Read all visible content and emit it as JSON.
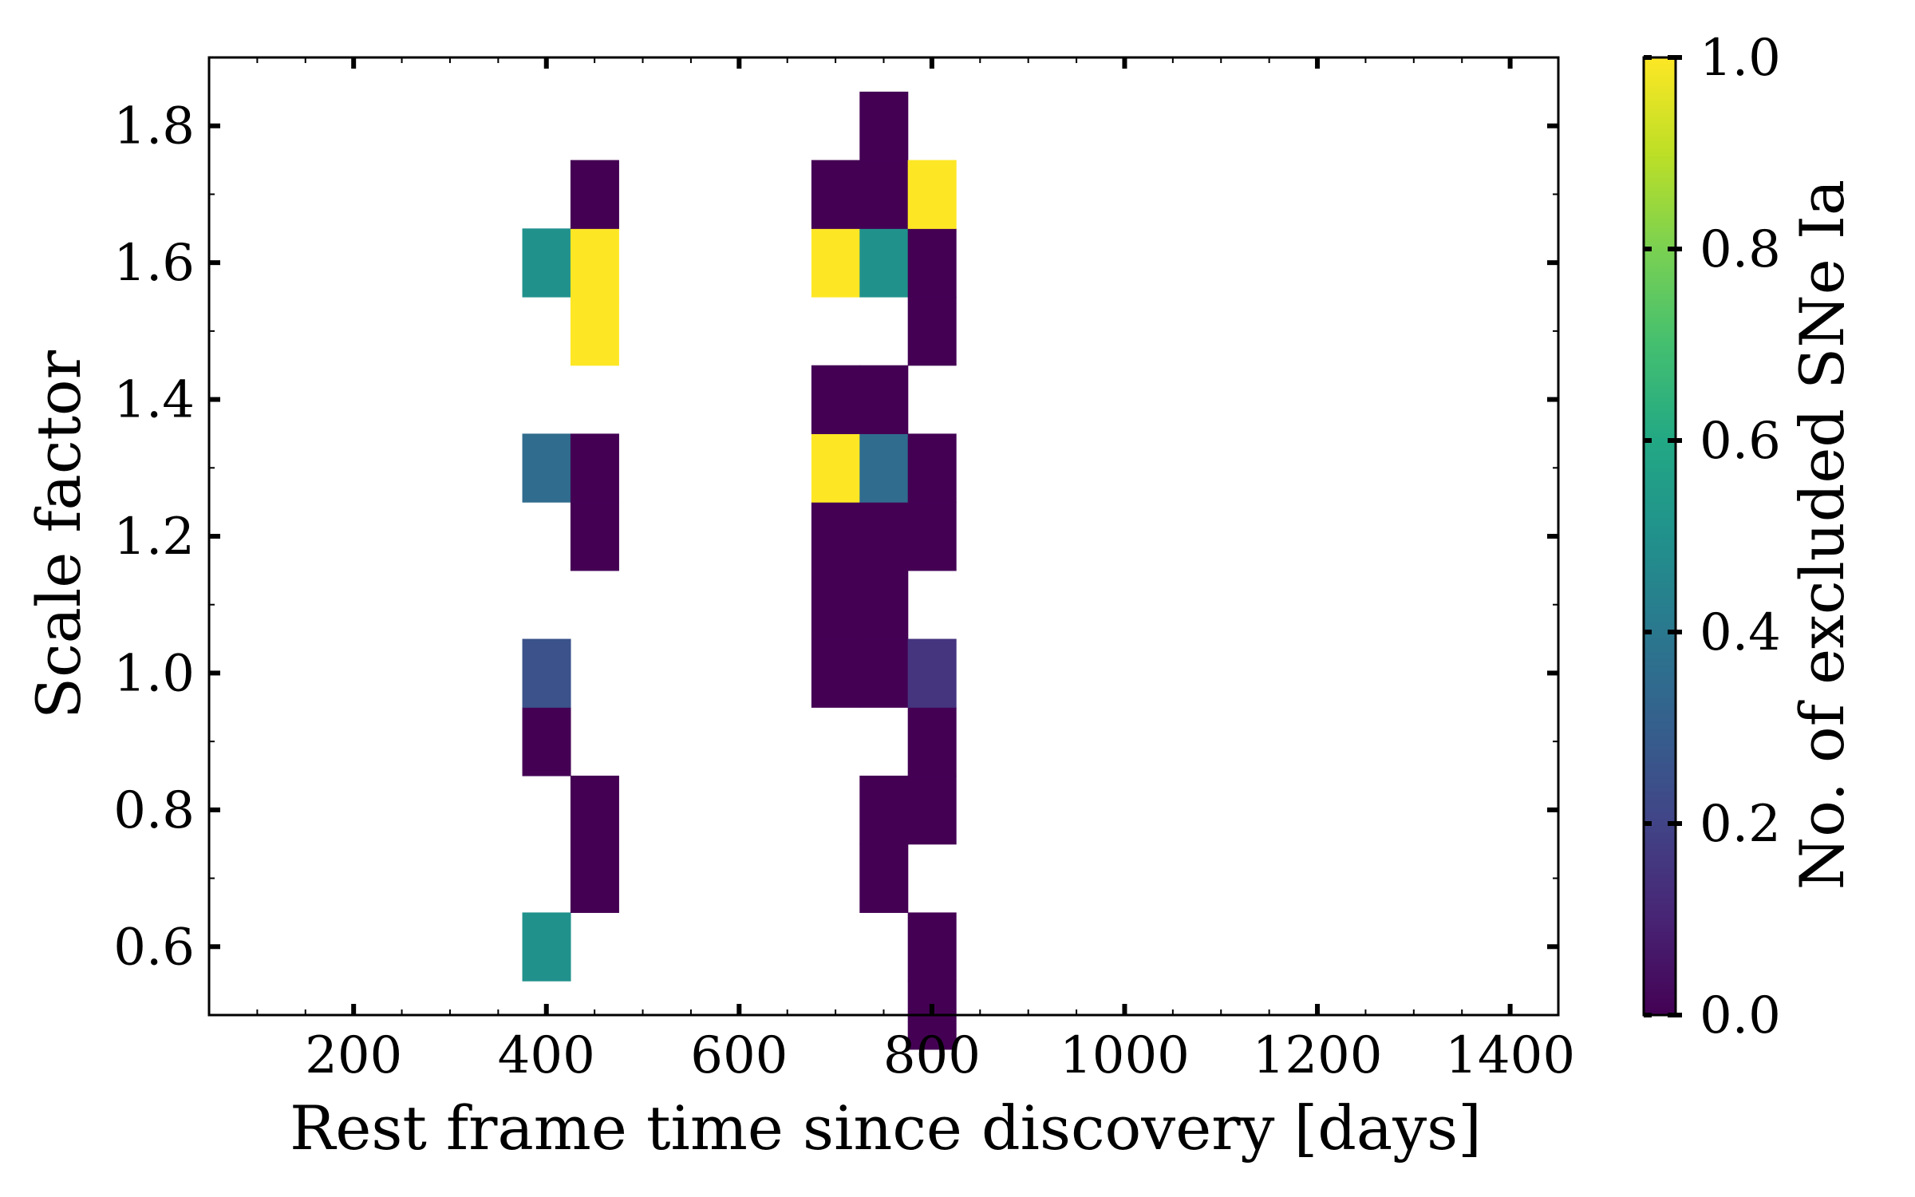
{
  "chart_data": {
    "type": "heatmap",
    "title": "",
    "xlabel": "Rest frame time since discovery [days]",
    "ylabel": "Scale factor",
    "colorbar_label": "No. of excluded SNe Ia",
    "colormap": "viridis",
    "xlim": [
      50,
      1450
    ],
    "ylim": [
      0.5,
      1.9
    ],
    "clim": [
      0.0,
      1.0
    ],
    "x_ticks": [
      200,
      400,
      600,
      800,
      1000,
      1200,
      1400
    ],
    "x_tick_labels": [
      "200",
      "400",
      "600",
      "800",
      "1000",
      "1200",
      "1400"
    ],
    "y_ticks": [
      0.6,
      0.8,
      1.0,
      1.2,
      1.4,
      1.6,
      1.8
    ],
    "y_tick_labels": [
      "0.6",
      "0.8",
      "1.0",
      "1.2",
      "1.4",
      "1.6",
      "1.8"
    ],
    "colorbar_ticks": [
      0.0,
      0.2,
      0.4,
      0.6,
      0.8,
      1.0
    ],
    "colorbar_tick_labels": [
      "0.0",
      "0.2",
      "0.4",
      "0.6",
      "0.8",
      "1.0"
    ],
    "bin_width_x": 50,
    "bin_height_y": 0.1,
    "cells": [
      {
        "x": 400,
        "y": 0.6,
        "value": 0.5
      },
      {
        "x": 400,
        "y": 0.9,
        "value": 0.0
      },
      {
        "x": 400,
        "y": 1.0,
        "value": 0.25
      },
      {
        "x": 400,
        "y": 1.3,
        "value": 0.35
      },
      {
        "x": 400,
        "y": 1.6,
        "value": 0.5
      },
      {
        "x": 450,
        "y": 0.7,
        "value": 0.0
      },
      {
        "x": 450,
        "y": 0.8,
        "value": 0.0
      },
      {
        "x": 450,
        "y": 1.2,
        "value": 0.0
      },
      {
        "x": 450,
        "y": 1.3,
        "value": 0.0
      },
      {
        "x": 450,
        "y": 1.5,
        "value": 1.0
      },
      {
        "x": 450,
        "y": 1.6,
        "value": 1.0
      },
      {
        "x": 450,
        "y": 1.7,
        "value": 0.0
      },
      {
        "x": 700,
        "y": 1.0,
        "value": 0.0
      },
      {
        "x": 700,
        "y": 1.1,
        "value": 0.0
      },
      {
        "x": 700,
        "y": 1.2,
        "value": 0.0
      },
      {
        "x": 700,
        "y": 1.3,
        "value": 1.0
      },
      {
        "x": 700,
        "y": 1.4,
        "value": 0.0
      },
      {
        "x": 700,
        "y": 1.6,
        "value": 1.0
      },
      {
        "x": 700,
        "y": 1.7,
        "value": 0.0
      },
      {
        "x": 750,
        "y": 0.7,
        "value": 0.0
      },
      {
        "x": 750,
        "y": 0.8,
        "value": 0.0
      },
      {
        "x": 750,
        "y": 1.0,
        "value": 0.0
      },
      {
        "x": 750,
        "y": 1.1,
        "value": 0.0
      },
      {
        "x": 750,
        "y": 1.2,
        "value": 0.0
      },
      {
        "x": 750,
        "y": 1.3,
        "value": 0.35
      },
      {
        "x": 750,
        "y": 1.4,
        "value": 0.0
      },
      {
        "x": 750,
        "y": 1.6,
        "value": 0.5
      },
      {
        "x": 750,
        "y": 1.7,
        "value": 0.0
      },
      {
        "x": 750,
        "y": 1.8,
        "value": 0.0
      },
      {
        "x": 800,
        "y": 0.5,
        "value": 0.0
      },
      {
        "x": 800,
        "y": 0.6,
        "value": 0.0
      },
      {
        "x": 800,
        "y": 0.8,
        "value": 0.0
      },
      {
        "x": 800,
        "y": 0.9,
        "value": 0.0
      },
      {
        "x": 800,
        "y": 1.0,
        "value": 0.15
      },
      {
        "x": 800,
        "y": 1.2,
        "value": 0.0
      },
      {
        "x": 800,
        "y": 1.3,
        "value": 0.0
      },
      {
        "x": 800,
        "y": 1.5,
        "value": 0.0
      },
      {
        "x": 800,
        "y": 1.6,
        "value": 0.0
      },
      {
        "x": 800,
        "y": 1.7,
        "value": 1.0
      }
    ]
  }
}
